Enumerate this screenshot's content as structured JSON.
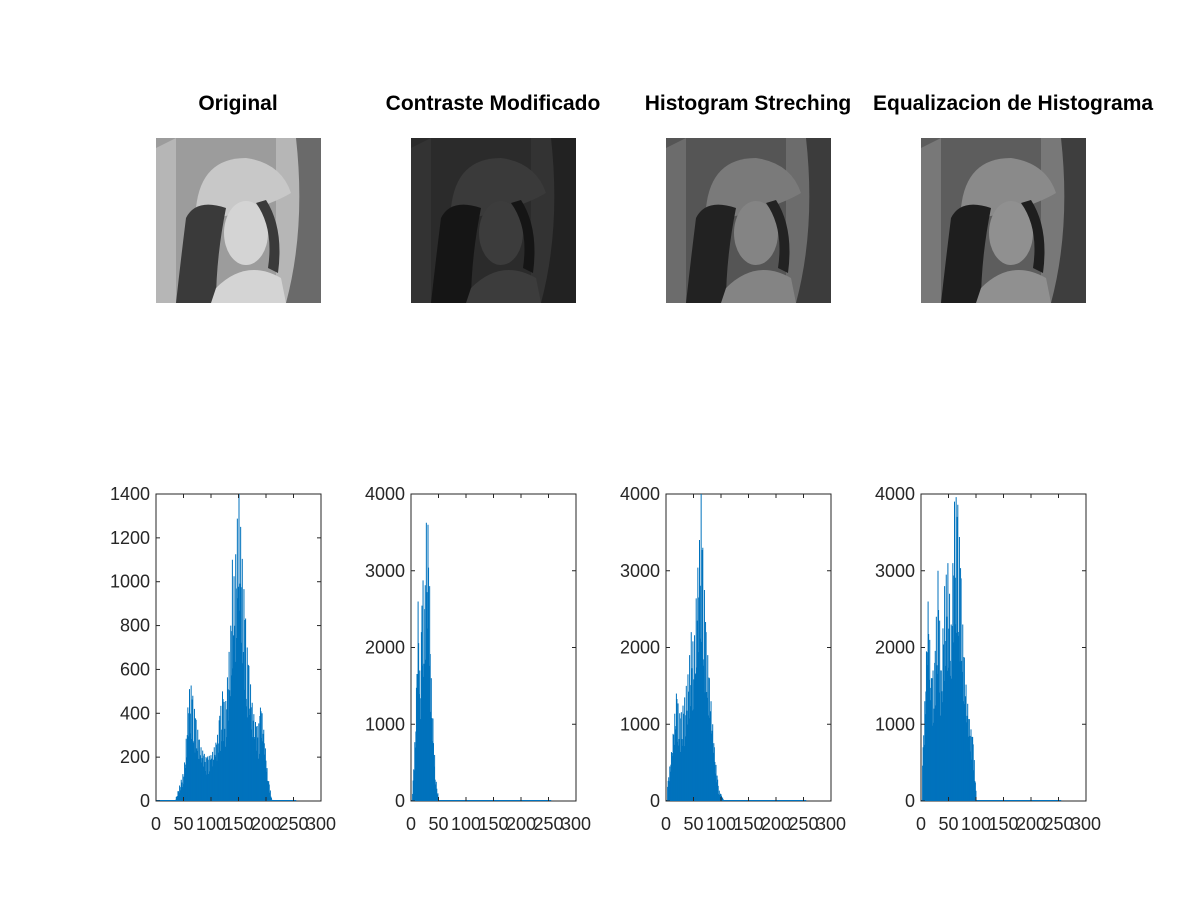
{
  "images": [
    {
      "title": "Original",
      "bg": "#9c9c9c",
      "hat": "#c8c8c8",
      "face": "#d4d4d4",
      "hair": "#3a3a3a",
      "frame": "#6a6a6a",
      "wall": "#b6b6b6"
    },
    {
      "title": "Contraste Modificado",
      "bg": "#2b2b2b",
      "hat": "#3a3a3a",
      "face": "#3c3c3c",
      "hair": "#151515",
      "frame": "#222222",
      "wall": "#333333"
    },
    {
      "title": "Histogram Streching",
      "bg": "#555555",
      "hat": "#7a7a7a",
      "face": "#848484",
      "hair": "#222222",
      "frame": "#3c3c3c",
      "wall": "#6c6c6c"
    },
    {
      "title": "Equalizacion de Histograma",
      "bg": "#5d5d5d",
      "hat": "#8a8a8a",
      "face": "#909090",
      "hair": "#1e1e1e",
      "frame": "#3e3e3e",
      "wall": "#787878"
    }
  ],
  "chart_data": [
    {
      "type": "bar",
      "title": "",
      "xlim": [
        0,
        300
      ],
      "ylim": [
        0,
        1400
      ],
      "xticks": [
        0,
        50,
        100,
        150,
        200,
        250,
        300
      ],
      "yticks": [
        0,
        200,
        400,
        600,
        800,
        1000,
        1200,
        1400
      ],
      "color": "#0072bd",
      "peaks": [
        {
          "x": 35,
          "y": 10
        },
        {
          "x": 50,
          "y": 140
        },
        {
          "x": 55,
          "y": 320
        },
        {
          "x": 58,
          "y": 480
        },
        {
          "x": 62,
          "y": 540
        },
        {
          "x": 65,
          "y": 500
        },
        {
          "x": 70,
          "y": 400
        },
        {
          "x": 80,
          "y": 250
        },
        {
          "x": 90,
          "y": 200
        },
        {
          "x": 100,
          "y": 210
        },
        {
          "x": 110,
          "y": 280
        },
        {
          "x": 120,
          "y": 500
        },
        {
          "x": 125,
          "y": 420
        },
        {
          "x": 130,
          "y": 600
        },
        {
          "x": 135,
          "y": 800
        },
        {
          "x": 138,
          "y": 1100
        },
        {
          "x": 142,
          "y": 1000
        },
        {
          "x": 146,
          "y": 1250
        },
        {
          "x": 150,
          "y": 1400
        },
        {
          "x": 155,
          "y": 1150
        },
        {
          "x": 160,
          "y": 920
        },
        {
          "x": 165,
          "y": 700
        },
        {
          "x": 170,
          "y": 560
        },
        {
          "x": 175,
          "y": 420
        },
        {
          "x": 180,
          "y": 360
        },
        {
          "x": 185,
          "y": 330
        },
        {
          "x": 190,
          "y": 450
        },
        {
          "x": 196,
          "y": 300
        },
        {
          "x": 202,
          "y": 120
        },
        {
          "x": 210,
          "y": 5
        },
        {
          "x": 255,
          "y": 0
        }
      ]
    },
    {
      "type": "bar",
      "title": "",
      "xlim": [
        0,
        300
      ],
      "ylim": [
        0,
        4000
      ],
      "xticks": [
        0,
        50,
        100,
        150,
        200,
        250,
        300
      ],
      "yticks": [
        0,
        1000,
        2000,
        3000,
        4000
      ],
      "color": "#0072bd",
      "peaks": [
        {
          "x": 2,
          "y": 100
        },
        {
          "x": 8,
          "y": 1100
        },
        {
          "x": 12,
          "y": 2600
        },
        {
          "x": 16,
          "y": 1400
        },
        {
          "x": 20,
          "y": 3000
        },
        {
          "x": 24,
          "y": 2500
        },
        {
          "x": 28,
          "y": 4000
        },
        {
          "x": 32,
          "y": 3200
        },
        {
          "x": 36,
          "y": 1600
        },
        {
          "x": 40,
          "y": 900
        },
        {
          "x": 44,
          "y": 300
        },
        {
          "x": 50,
          "y": 0
        },
        {
          "x": 255,
          "y": 0
        }
      ]
    },
    {
      "type": "bar",
      "title": "",
      "xlim": [
        0,
        300
      ],
      "ylim": [
        0,
        4000
      ],
      "xticks": [
        0,
        50,
        100,
        150,
        200,
        250,
        300
      ],
      "yticks": [
        0,
        1000,
        2000,
        3000,
        4000
      ],
      "color": "#0072bd",
      "peaks": [
        {
          "x": 2,
          "y": 200
        },
        {
          "x": 10,
          "y": 700
        },
        {
          "x": 18,
          "y": 1400
        },
        {
          "x": 25,
          "y": 1100
        },
        {
          "x": 32,
          "y": 1300
        },
        {
          "x": 40,
          "y": 1700
        },
        {
          "x": 45,
          "y": 2200
        },
        {
          "x": 50,
          "y": 2000
        },
        {
          "x": 55,
          "y": 2800
        },
        {
          "x": 60,
          "y": 3400
        },
        {
          "x": 63,
          "y": 4000
        },
        {
          "x": 66,
          "y": 3300
        },
        {
          "x": 72,
          "y": 2200
        },
        {
          "x": 80,
          "y": 1400
        },
        {
          "x": 88,
          "y": 600
        },
        {
          "x": 95,
          "y": 150
        },
        {
          "x": 105,
          "y": 0
        },
        {
          "x": 255,
          "y": 0
        }
      ]
    },
    {
      "type": "bar",
      "title": "",
      "xlim": [
        0,
        300
      ],
      "ylim": [
        0,
        4000
      ],
      "xticks": [
        0,
        50,
        100,
        150,
        200,
        250,
        300
      ],
      "yticks": [
        0,
        1000,
        2000,
        3000,
        4000
      ],
      "color": "#0072bd",
      "peaks": [
        {
          "x": 2,
          "y": 500
        },
        {
          "x": 6,
          "y": 1300
        },
        {
          "x": 12,
          "y": 2600
        },
        {
          "x": 18,
          "y": 1600
        },
        {
          "x": 24,
          "y": 1800
        },
        {
          "x": 30,
          "y": 3000
        },
        {
          "x": 36,
          "y": 1700
        },
        {
          "x": 42,
          "y": 2800
        },
        {
          "x": 48,
          "y": 3100
        },
        {
          "x": 54,
          "y": 2300
        },
        {
          "x": 60,
          "y": 3900
        },
        {
          "x": 65,
          "y": 4000
        },
        {
          "x": 70,
          "y": 3300
        },
        {
          "x": 76,
          "y": 2100
        },
        {
          "x": 82,
          "y": 1400
        },
        {
          "x": 88,
          "y": 1000
        },
        {
          "x": 94,
          "y": 800
        },
        {
          "x": 100,
          "y": 0
        },
        {
          "x": 255,
          "y": 0
        }
      ]
    }
  ]
}
